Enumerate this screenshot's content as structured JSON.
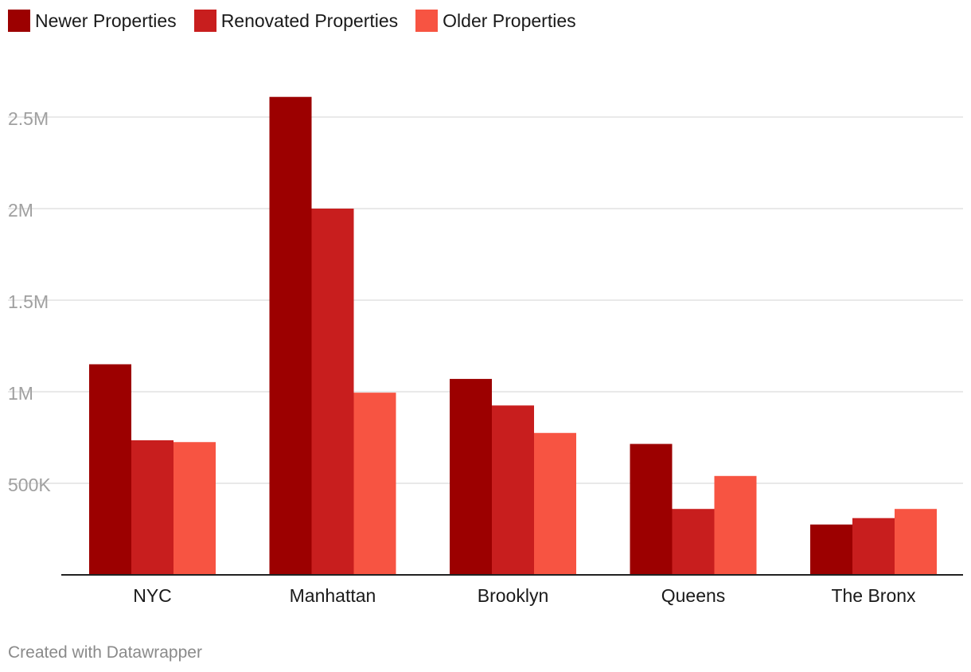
{
  "chart_data": {
    "type": "bar",
    "categories": [
      "NYC",
      "Manhattan",
      "Brooklyn",
      "Queens",
      "The Bronx"
    ],
    "series": [
      {
        "name": "Newer Properties",
        "color": "#9c0000",
        "values": [
          1150000,
          2610000,
          1070000,
          715000,
          275000
        ]
      },
      {
        "name": "Renovated Properties",
        "color": "#c81e1e",
        "values": [
          735000,
          2000000,
          925000,
          360000,
          310000
        ]
      },
      {
        "name": "Older Properties",
        "color": "#f75442",
        "values": [
          725000,
          995000,
          775000,
          540000,
          360000
        ]
      }
    ],
    "yticks": [
      {
        "value": 500000,
        "label": "500K"
      },
      {
        "value": 1000000,
        "label": "1M"
      },
      {
        "value": 1500000,
        "label": "1.5M"
      },
      {
        "value": 2000000,
        "label": "2M"
      },
      {
        "value": 2500000,
        "label": "2.5M"
      }
    ],
    "ylim": [
      0,
      2700000
    ],
    "grid": true,
    "legend_position": "top-left"
  },
  "footer": {
    "credit": "Created with Datawrapper"
  }
}
